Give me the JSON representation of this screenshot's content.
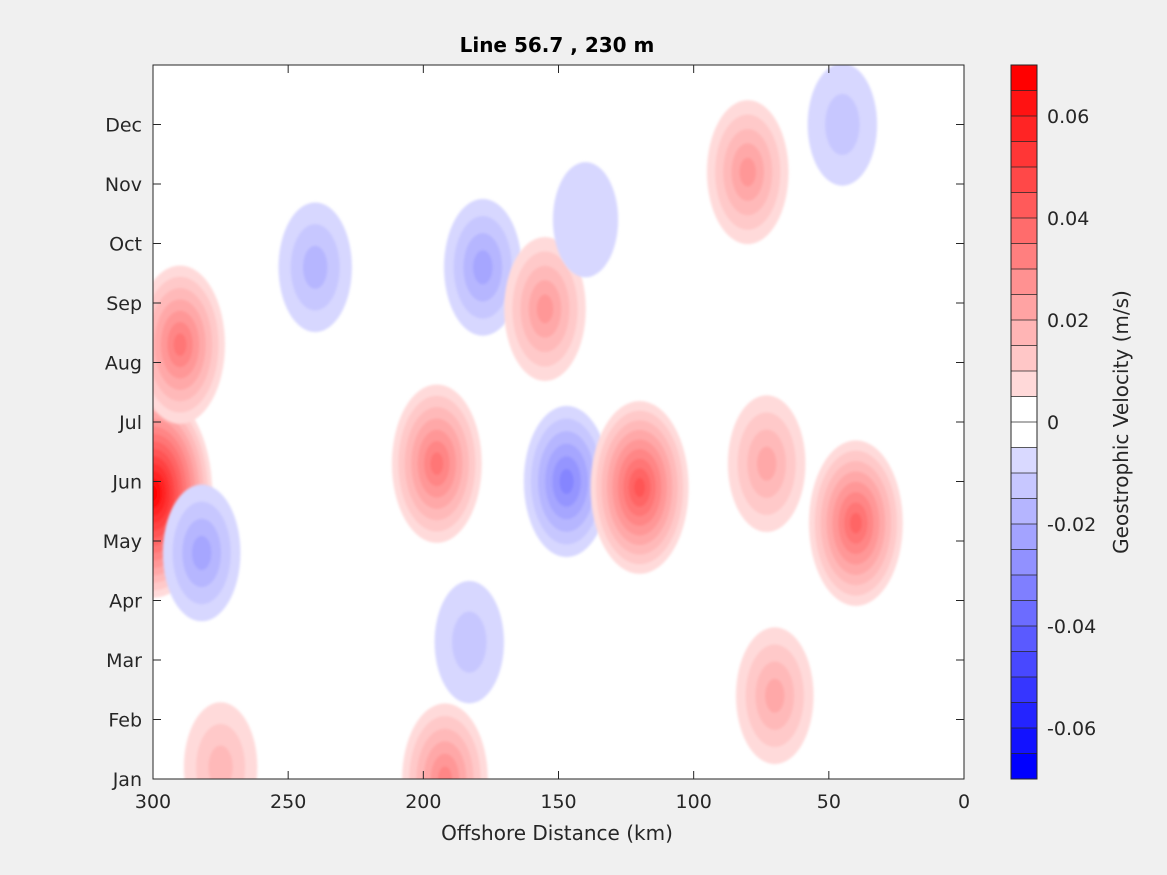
{
  "chart_data": {
    "type": "heatmap",
    "subtype": "filled-contour",
    "title": "Line 56.7 , 230 m",
    "xlabel": "Offshore Distance (km)",
    "ylabel": "",
    "xlim": [
      300,
      0
    ],
    "x_reversed": true,
    "x_ticks": [
      "300",
      "250",
      "200",
      "150",
      "100",
      "50",
      "0"
    ],
    "y_ticks": [
      "Jan",
      "Feb",
      "Mar",
      "Apr",
      "May",
      "Jun",
      "Jul",
      "Aug",
      "Sep",
      "Oct",
      "Nov",
      "Dec"
    ],
    "grid": false,
    "colorbar": {
      "label": "Geostrophic Velocity (m/s)",
      "range": [
        -0.07,
        0.07
      ],
      "step": 0.005,
      "ticks": [
        "0.06",
        "0.04",
        "0.02",
        "0",
        "-0.02",
        "-0.04",
        "-0.06"
      ],
      "positive_color": "#ff0000",
      "negative_color": "#0000ff",
      "zero_color": "#ffffff"
    },
    "data_extent_km": [
      300,
      30
    ],
    "features": [
      {
        "km": 300,
        "month": 5.8,
        "velocity": 0.07
      },
      {
        "km": 290,
        "month": 8.3,
        "velocity": 0.035
      },
      {
        "km": 282,
        "month": 4.8,
        "velocity": -0.02
      },
      {
        "km": 275,
        "month": 1.2,
        "velocity": 0.015
      },
      {
        "km": 240,
        "month": 9.6,
        "velocity": -0.015
      },
      {
        "km": 195,
        "month": 6.3,
        "velocity": 0.035
      },
      {
        "km": 192,
        "month": 1.0,
        "velocity": 0.03
      },
      {
        "km": 178,
        "month": 9.6,
        "velocity": -0.02
      },
      {
        "km": 183,
        "month": 3.3,
        "velocity": -0.01
      },
      {
        "km": 155,
        "month": 8.9,
        "velocity": 0.025
      },
      {
        "km": 147,
        "month": 6.0,
        "velocity": -0.03
      },
      {
        "km": 120,
        "month": 5.9,
        "velocity": 0.045
      },
      {
        "km": 80,
        "month": 11.2,
        "velocity": 0.025
      },
      {
        "km": 73,
        "month": 6.3,
        "velocity": 0.02
      },
      {
        "km": 70,
        "month": 2.4,
        "velocity": 0.02
      },
      {
        "km": 40,
        "month": 5.3,
        "velocity": 0.04
      },
      {
        "km": 45,
        "month": 12.0,
        "velocity": -0.01
      },
      {
        "km": 140,
        "month": 10.4,
        "velocity": -0.005
      }
    ]
  }
}
